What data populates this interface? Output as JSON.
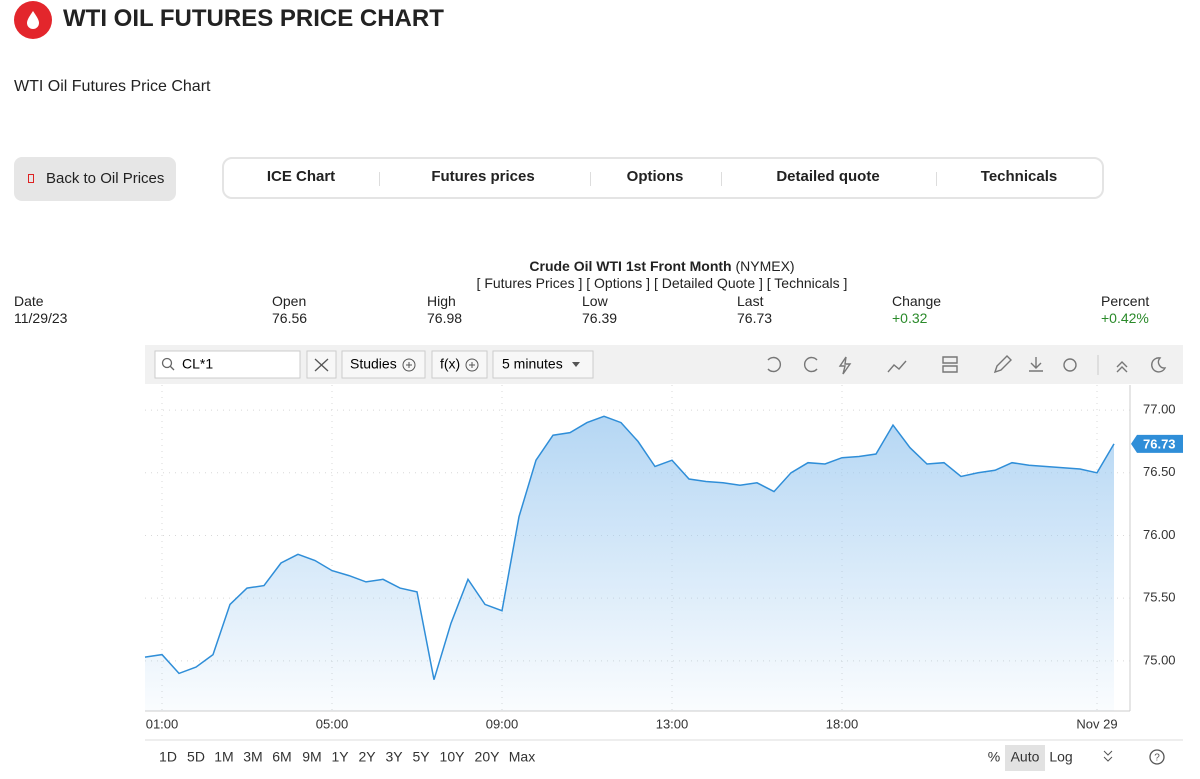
{
  "header": {
    "title": "WTI OIL FUTURES PRICE CHART",
    "subtitle": "WTI Oil Futures Price Chart"
  },
  "nav": {
    "back_button": "Back to Oil Prices",
    "tabs": [
      "ICE Chart",
      "Futures prices",
      "Options",
      "Detailed quote",
      "Technicals"
    ]
  },
  "quote": {
    "title": "Crude Oil WTI 1st Front Month",
    "exchange": "(NYMEX)",
    "links": "[ Futures Prices ] [ Options ] [ Detailed Quote ] [ Technicals ]",
    "columns": [
      {
        "label": "Date",
        "value": "11/29/23"
      },
      {
        "label": "Open",
        "value": "76.56"
      },
      {
        "label": "High",
        "value": "76.98"
      },
      {
        "label": "Low",
        "value": "76.39"
      },
      {
        "label": "Last",
        "value": "76.73"
      },
      {
        "label": "Change",
        "value": "+0.32"
      },
      {
        "label": "Percent",
        "value": "+0.42%"
      }
    ]
  },
  "toolbar": {
    "symbol": "CL*1",
    "studies": "Studies",
    "function": "f(x)",
    "interval": "5 minutes"
  },
  "ranges": [
    "1D",
    "5D",
    "1M",
    "3M",
    "6M",
    "9M",
    "1Y",
    "2Y",
    "3Y",
    "5Y",
    "10Y",
    "20Y",
    "Max"
  ],
  "scale_options": [
    "%",
    "Auto",
    "Log"
  ],
  "chart_data": {
    "type": "area",
    "color": "#2f8ed8",
    "categories": [
      null,
      "01:00",
      null,
      null,
      null,
      null,
      null,
      null,
      null,
      null,
      null,
      "05:00",
      null,
      null,
      null,
      null,
      null,
      null,
      null,
      null,
      null,
      "09:00",
      null,
      null,
      null,
      null,
      null,
      null,
      null,
      null,
      null,
      "13:00",
      null,
      null,
      null,
      null,
      null,
      null,
      null,
      null,
      null,
      "18:00",
      null,
      null,
      null,
      null,
      null,
      null,
      null,
      null,
      null,
      null,
      null,
      null,
      null,
      null,
      "Nov 29",
      null
    ],
    "values": [
      75.03,
      75.05,
      74.9,
      74.95,
      75.05,
      75.45,
      75.58,
      75.6,
      75.78,
      75.85,
      75.8,
      75.72,
      75.68,
      75.63,
      75.65,
      75.58,
      75.55,
      74.85,
      75.3,
      75.65,
      75.45,
      75.4,
      76.15,
      76.6,
      76.8,
      76.82,
      76.9,
      76.95,
      76.9,
      76.75,
      76.55,
      76.6,
      76.45,
      76.43,
      76.42,
      76.4,
      76.42,
      76.35,
      76.5,
      76.58,
      76.57,
      76.62,
      76.63,
      76.65,
      76.88,
      76.7,
      76.57,
      76.58,
      76.47,
      76.5,
      76.52,
      76.58,
      76.56,
      76.55,
      76.54,
      76.53,
      76.5,
      76.73
    ],
    "ylim": [
      74.6,
      77.2
    ],
    "yticks": [
      {
        "value": 75,
        "label": "75.00"
      },
      {
        "value": 75.5,
        "label": "75.50"
      },
      {
        "value": 76,
        "label": "76.00"
      },
      {
        "value": 76.5,
        "label": "76.50"
      },
      {
        "value": 77,
        "label": "77.00"
      }
    ],
    "grid": true
  }
}
